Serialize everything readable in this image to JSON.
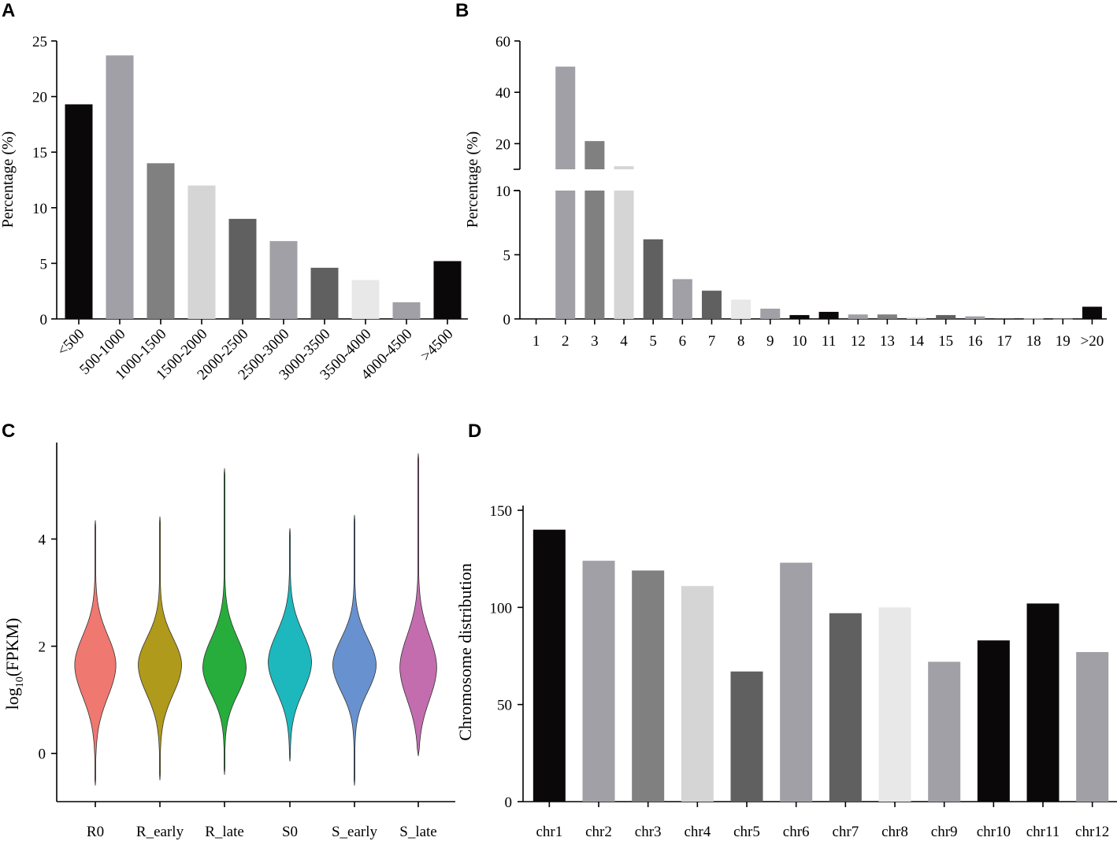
{
  "chart_data": [
    {
      "panel": "A",
      "type": "bar",
      "ylabel": "Percentage (%)",
      "ylim": [
        0,
        25
      ],
      "yticks": [
        0,
        5,
        10,
        15,
        20,
        25
      ],
      "categories": [
        "<500",
        "500-1000",
        "1000-1500",
        "1500-2000",
        "2000-2500",
        "2500-3000",
        "3000-3500",
        "3500-4000",
        "4000-4500",
        ">4500"
      ],
      "values": [
        19.3,
        23.7,
        14.0,
        12.0,
        9.0,
        7.0,
        4.6,
        3.5,
        1.5,
        5.2
      ],
      "colors": [
        "#0a0808",
        "#a0a0a6",
        "#808080",
        "#d5d5d5",
        "#606060",
        "#a0a0a6",
        "#606060",
        "#e8e8e8",
        "#a0a0a6",
        "#0a0808"
      ]
    },
    {
      "panel": "B",
      "type": "bar",
      "ylabel": "Percentage (%)",
      "broken_axis": true,
      "lower_ylim": [
        0,
        10
      ],
      "lower_yticks": [
        0,
        5,
        10
      ],
      "upper_ylim": [
        10,
        60
      ],
      "upper_yticks": [
        20,
        40,
        60
      ],
      "categories": [
        "1",
        "2",
        "3",
        "4",
        "5",
        "6",
        "7",
        "8",
        "9",
        "10",
        "11",
        "12",
        "13",
        "14",
        "15",
        "16",
        "17",
        "18",
        "19",
        ">20"
      ],
      "values": [
        0,
        50,
        21,
        11.2,
        6.2,
        3.1,
        2.2,
        1.5,
        0.8,
        0.3,
        0.55,
        0.35,
        0.35,
        0.1,
        0.3,
        0.2,
        0.05,
        0.03,
        0.02,
        0.95
      ],
      "colors": [
        "#0a0808",
        "#a0a0a6",
        "#808080",
        "#d5d5d5",
        "#606060",
        "#a0a0a6",
        "#606060",
        "#e8e8e8",
        "#a0a0a6",
        "#0a0808",
        "#0a0808",
        "#a0a0a6",
        "#808080",
        "#d5d5d5",
        "#606060",
        "#a0a0a6",
        "#606060",
        "#e8e8e8",
        "#a0a0a6",
        "#0a0808"
      ]
    },
    {
      "panel": "C",
      "type": "violin",
      "ylabel_main": "log",
      "ylabel_sub": "10",
      "ylabel_rest": "(FPKM)",
      "ylim": [
        -0.9,
        5.8
      ],
      "yticks": [
        0,
        2,
        4
      ],
      "categories": [
        "R0",
        "R_early",
        "R_late",
        "S0",
        "S_early",
        "S_late"
      ],
      "colors": [
        "#ef7871",
        "#b09a1c",
        "#27ad3c",
        "#1db8bd",
        "#6892cf",
        "#c36daf"
      ],
      "violins": [
        {
          "name": "R0",
          "min": -0.6,
          "max": 4.35,
          "mode": 1.65,
          "spread_up": 0.55,
          "spread_down": 0.6,
          "halfwidth": 0.95
        },
        {
          "name": "R_early",
          "min": -0.5,
          "max": 4.42,
          "mode": 1.65,
          "spread_up": 0.5,
          "spread_down": 0.55,
          "halfwidth": 1.0
        },
        {
          "name": "R_late",
          "min": -0.4,
          "max": 5.32,
          "mode": 1.6,
          "spread_up": 0.55,
          "spread_down": 0.5,
          "halfwidth": 1.0
        },
        {
          "name": "S0",
          "min": -0.15,
          "max": 4.2,
          "mode": 1.7,
          "spread_up": 0.55,
          "spread_down": 0.55,
          "halfwidth": 1.0
        },
        {
          "name": "S_early",
          "min": -0.6,
          "max": 4.45,
          "mode": 1.65,
          "spread_up": 0.5,
          "spread_down": 0.5,
          "halfwidth": 1.0
        },
        {
          "name": "S_late",
          "min": -0.05,
          "max": 5.6,
          "mode": 1.6,
          "spread_up": 0.6,
          "spread_down": 0.6,
          "halfwidth": 0.85
        }
      ]
    },
    {
      "panel": "D",
      "type": "bar",
      "ylabel": "Chromosome distribution",
      "ylim": [
        0,
        150
      ],
      "yticks": [
        0,
        50,
        100,
        150
      ],
      "categories": [
        "chr1",
        "chr2",
        "chr3",
        "chr4",
        "chr5",
        "chr6",
        "chr7",
        "chr8",
        "chr9",
        "chr10",
        "chr11",
        "chr12"
      ],
      "values": [
        140,
        124,
        119,
        111,
        67,
        123,
        97,
        100,
        72,
        83,
        102,
        77
      ],
      "colors": [
        "#0a0808",
        "#a0a0a6",
        "#808080",
        "#d5d5d5",
        "#606060",
        "#a0a0a6",
        "#606060",
        "#e8e8e8",
        "#a0a0a6",
        "#0a0808",
        "#0a0808",
        "#a0a0a6"
      ]
    }
  ]
}
